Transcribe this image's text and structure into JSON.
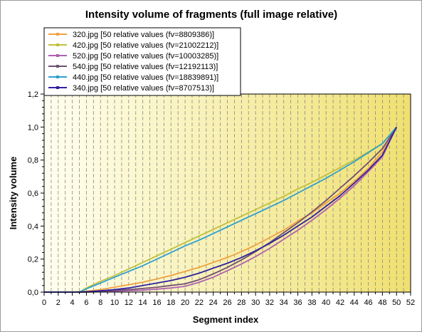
{
  "chart_data": {
    "type": "line",
    "title": "Intensity volume of fragments (full image relative)",
    "xlabel": "Segment index",
    "ylabel": "Intensity volume",
    "xlim": [
      0,
      52
    ],
    "ylim": [
      0,
      1.2
    ],
    "x_ticks": [
      "0",
      "2",
      "4",
      "6",
      "8",
      "10",
      "12",
      "14",
      "16",
      "18",
      "20",
      "22",
      "24",
      "26",
      "28",
      "30",
      "32",
      "34",
      "36",
      "38",
      "40",
      "42",
      "44",
      "46",
      "48",
      "50",
      "52"
    ],
    "y_ticks": [
      "0,0",
      "0,2",
      "0,4",
      "0,6",
      "0,8",
      "1,0",
      "1,2"
    ],
    "grid": "vertical dashed",
    "legend_position": "top-left",
    "background": {
      "left": "#fffff0",
      "right": "#f0e070"
    },
    "series": [
      {
        "name": "320.jpg [50 relative values (fv=8809386)]",
        "color": "#f0a040",
        "x": [
          0,
          4,
          6,
          8,
          10,
          12,
          14,
          16,
          18,
          20,
          22,
          24,
          26,
          28,
          30,
          32,
          34,
          36,
          38,
          40,
          42,
          44,
          46,
          48,
          50
        ],
        "y": [
          0,
          0,
          0.005,
          0.015,
          0.03,
          0.045,
          0.06,
          0.08,
          0.1,
          0.125,
          0.15,
          0.18,
          0.21,
          0.245,
          0.285,
          0.33,
          0.375,
          0.43,
          0.48,
          0.54,
          0.6,
          0.67,
          0.75,
          0.85,
          1.0
        ]
      },
      {
        "name": "420.jpg [50 relative values (fv=21002212)]",
        "color": "#c0c040",
        "x": [
          0,
          4,
          5,
          6,
          8,
          10,
          12,
          14,
          16,
          18,
          20,
          22,
          24,
          26,
          28,
          30,
          32,
          34,
          36,
          38,
          40,
          42,
          44,
          46,
          48,
          50
        ],
        "y": [
          0,
          0,
          0,
          0.025,
          0.065,
          0.1,
          0.14,
          0.18,
          0.22,
          0.26,
          0.3,
          0.34,
          0.38,
          0.42,
          0.46,
          0.5,
          0.54,
          0.58,
          0.625,
          0.665,
          0.71,
          0.755,
          0.8,
          0.85,
          0.9,
          1.0
        ]
      },
      {
        "name": "520.jpg [50 relative values (fv=10003285)]",
        "color": "#b060b0",
        "x": [
          0,
          6,
          8,
          10,
          12,
          14,
          16,
          18,
          20,
          22,
          24,
          26,
          28,
          30,
          32,
          34,
          36,
          38,
          40,
          42,
          44,
          46,
          48,
          50
        ],
        "y": [
          0,
          0,
          0.002,
          0.005,
          0.008,
          0.012,
          0.018,
          0.025,
          0.035,
          0.06,
          0.09,
          0.13,
          0.17,
          0.215,
          0.265,
          0.32,
          0.375,
          0.435,
          0.5,
          0.57,
          0.645,
          0.73,
          0.82,
          1.0
        ]
      },
      {
        "name": "540.jpg [50 relative values (fv=12192113)]",
        "color": "#705070",
        "x": [
          0,
          6,
          8,
          10,
          12,
          14,
          16,
          18,
          20,
          22,
          24,
          26,
          28,
          30,
          32,
          34,
          36,
          38,
          40,
          42,
          44,
          46,
          48,
          50
        ],
        "y": [
          0,
          0,
          0.005,
          0.01,
          0.015,
          0.022,
          0.03,
          0.04,
          0.05,
          0.075,
          0.11,
          0.15,
          0.195,
          0.245,
          0.3,
          0.36,
          0.42,
          0.485,
          0.555,
          0.63,
          0.705,
          0.785,
          0.87,
          1.0
        ]
      },
      {
        "name": "440.jpg [50 relative values (fv=18839891)]",
        "color": "#30a0d0",
        "x": [
          0,
          4,
          5,
          6,
          8,
          10,
          12,
          14,
          16,
          18,
          20,
          22,
          24,
          26,
          28,
          30,
          32,
          34,
          36,
          38,
          40,
          42,
          44,
          46,
          48,
          50
        ],
        "y": [
          0,
          0,
          0,
          0.02,
          0.055,
          0.09,
          0.125,
          0.16,
          0.2,
          0.24,
          0.28,
          0.315,
          0.355,
          0.395,
          0.435,
          0.475,
          0.515,
          0.555,
          0.6,
          0.645,
          0.69,
          0.74,
          0.79,
          0.845,
          0.9,
          1.0
        ]
      },
      {
        "name": "340.jpg [50 relative values (fv=8707513)]",
        "color": "#3020a0",
        "x": [
          0,
          5,
          6,
          8,
          10,
          12,
          14,
          16,
          18,
          20,
          22,
          24,
          26,
          28,
          30,
          32,
          34,
          36,
          38,
          40,
          42,
          44,
          46,
          48,
          50
        ],
        "y": [
          0,
          0,
          0.002,
          0.008,
          0.015,
          0.025,
          0.04,
          0.055,
          0.07,
          0.09,
          0.115,
          0.145,
          0.175,
          0.21,
          0.25,
          0.295,
          0.345,
          0.4,
          0.455,
          0.52,
          0.585,
          0.66,
          0.74,
          0.83,
          1.0
        ]
      }
    ]
  }
}
